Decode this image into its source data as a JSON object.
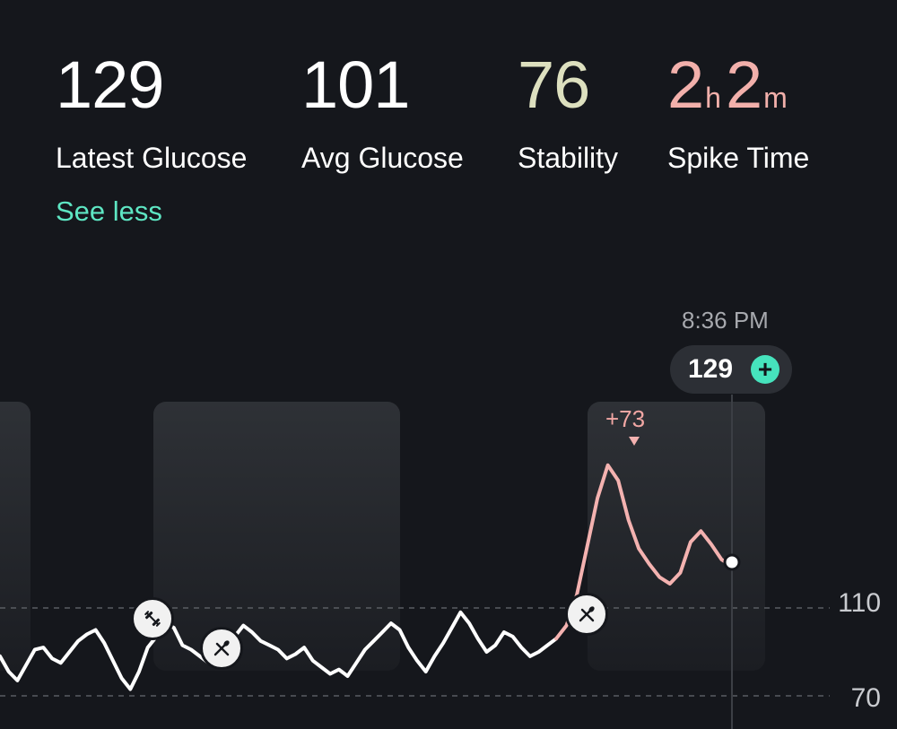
{
  "stats": {
    "latest": {
      "value": "129",
      "label": "Latest Glucose"
    },
    "average": {
      "value": "101",
      "label": "Avg Glucose"
    },
    "stability": {
      "value": "76",
      "label": "Stability"
    },
    "spike_time": {
      "hours": "2",
      "hours_unit": "h",
      "minutes": "2",
      "minutes_unit": "m",
      "label": "Spike Time"
    }
  },
  "see_less_label": "See less",
  "current_reading": {
    "time": "8:36 PM",
    "value": "129",
    "add_icon": "plus-icon"
  },
  "spike": {
    "label": "+73"
  },
  "colors": {
    "background": "#15171c",
    "average_value": "#ffffff",
    "stability_value": "#dde0bf",
    "spike_value": "#f2b0ab",
    "accent": "#5ee6c3",
    "line": "#ffffff",
    "spike_line": "#f4b2b0"
  },
  "markers": [
    {
      "type": "workout",
      "icon": "dumbbell-icon"
    },
    {
      "type": "meal",
      "icon": "fork-knife-icon"
    },
    {
      "type": "meal",
      "icon": "fork-knife-icon"
    }
  ],
  "chart_data": {
    "type": "line",
    "ylabel": "",
    "ytick_labels": [
      "110",
      "70"
    ],
    "yticks": [
      110,
      70
    ],
    "ylim": [
      50,
      200
    ],
    "grid": "dashed at y ticks",
    "series": [
      {
        "color": "#ffffff",
        "values": [
          88,
          81,
          77,
          84,
          91,
          92,
          87,
          85,
          90,
          95,
          98,
          100,
          94,
          86,
          78,
          73,
          81,
          92,
          97,
          103,
          101,
          93,
          91,
          88,
          85,
          86,
          90,
          97,
          102,
          99,
          95,
          93,
          91,
          87,
          89,
          92,
          86,
          83,
          80,
          82,
          79,
          85,
          91,
          95,
          99,
          103,
          100,
          92,
          86,
          81,
          88,
          94,
          101,
          108,
          103,
          96,
          90,
          93,
          99,
          97,
          92,
          88,
          90,
          93,
          96
        ]
      },
      {
        "color": "#f4b2b0",
        "values": [
          96,
          102,
          116,
          138,
          160,
          175,
          168,
          150,
          137,
          130,
          124,
          121,
          126,
          140,
          145,
          139,
          132,
          129
        ]
      }
    ],
    "spike_delta": 73,
    "current_value": 129
  }
}
